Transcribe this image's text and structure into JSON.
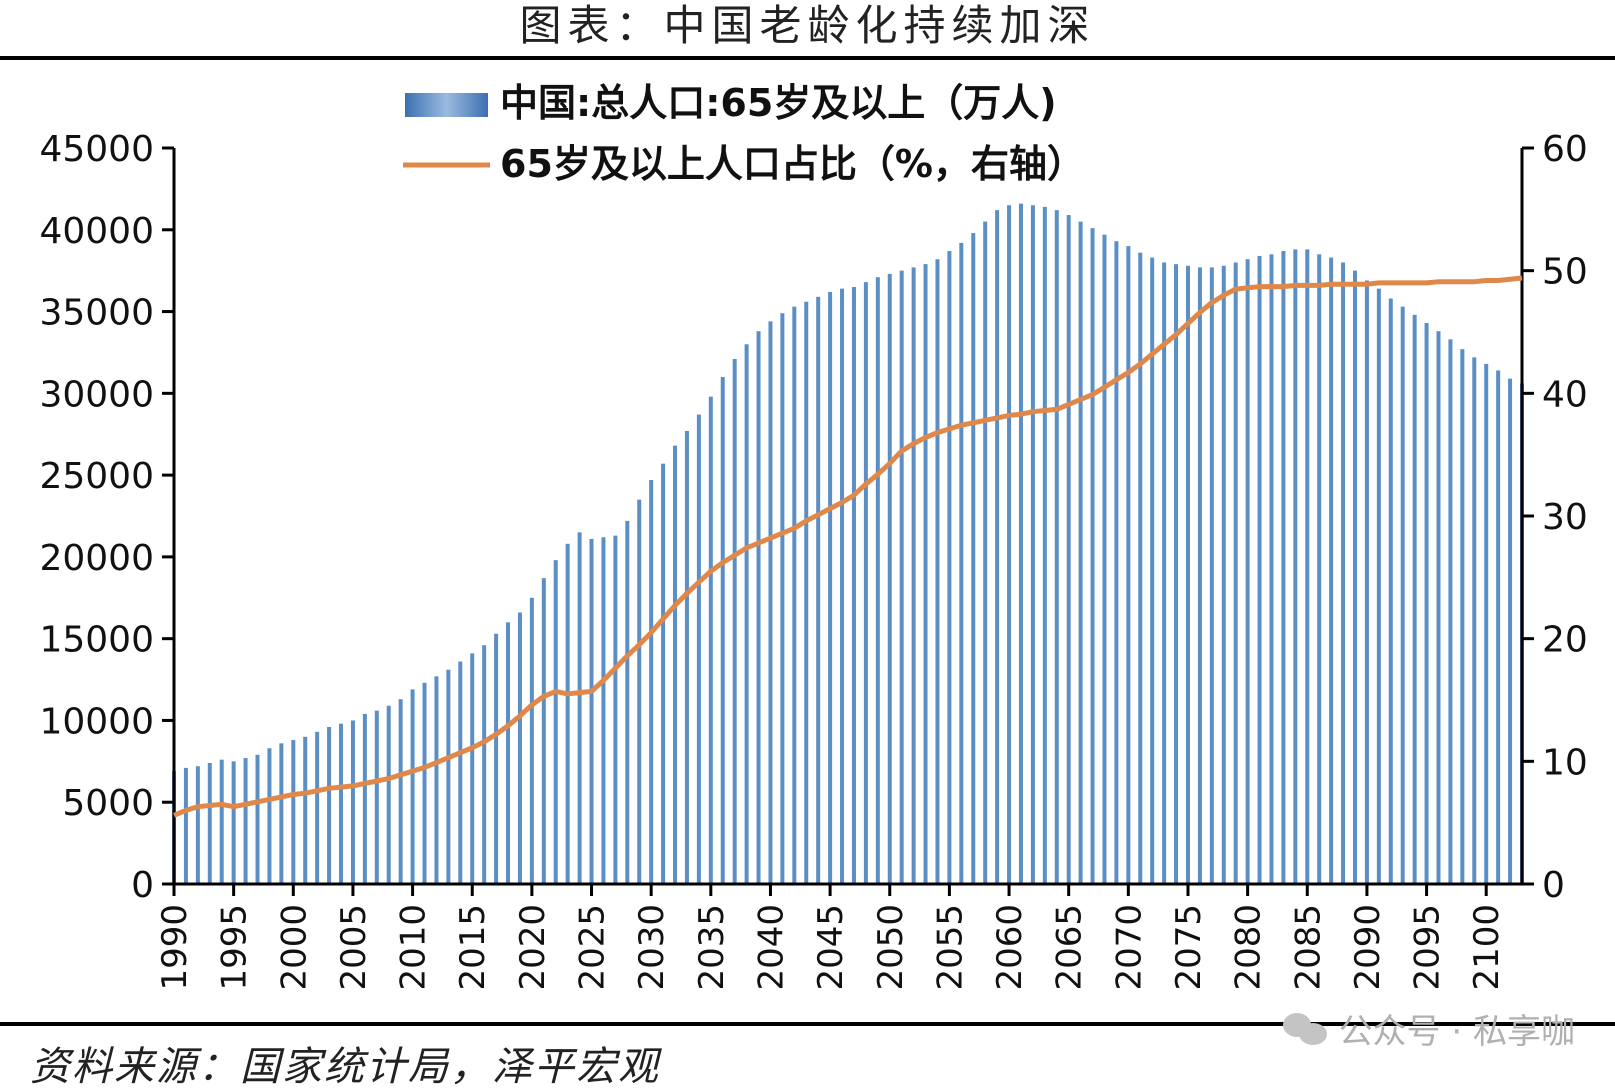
{
  "figure": {
    "title": "图表：中国老龄化持续加深",
    "source": "资料来源：国家统计局，泽平宏观",
    "watermark": "公众号 · 私享咖",
    "watermark_icon": "wechat-icon"
  },
  "chart_data": {
    "type": "bar+line",
    "legend": {
      "placement": "top-center",
      "entries": [
        "中国:总人口:65岁及以上（万人)",
        "65岁及以上人口占比（%，右轴）"
      ]
    },
    "left_axis": {
      "ylim": [
        0,
        45000
      ],
      "ticks": [
        "0",
        "5000",
        "10000",
        "15000",
        "20000",
        "25000",
        "30000",
        "35000",
        "40000",
        "45000"
      ]
    },
    "right_axis": {
      "ylim": [
        0,
        60
      ],
      "ticks": [
        "0",
        "10",
        "20",
        "30",
        "40",
        "50",
        "60"
      ]
    },
    "x_tick_labels": [
      "1990",
      "1995",
      "2000",
      "2005",
      "2010",
      "2015",
      "2020",
      "2025",
      "2030",
      "2035",
      "2040",
      "2045",
      "2050",
      "2055",
      "2060",
      "2065",
      "2070",
      "2075",
      "2080",
      "2085",
      "2090",
      "2095",
      "2100"
    ],
    "colors": {
      "bars": "#5b8ec4",
      "line": "#e0884a"
    },
    "series": [
      {
        "name": "中国:总人口:65岁及以上（万人)",
        "axis": "left",
        "kind": "bar",
        "x_start": 1990,
        "values": [
          6900,
          7100,
          7200,
          7400,
          7600,
          7500,
          7700,
          7900,
          8300,
          8600,
          8800,
          9000,
          9300,
          9600,
          9800,
          10000,
          10400,
          10600,
          10900,
          11300,
          11900,
          12300,
          12700,
          13100,
          13600,
          14100,
          14600,
          15300,
          16000,
          16600,
          17500,
          18700,
          19800,
          20800,
          21500,
          21100,
          21200,
          21300,
          22200,
          23500,
          24700,
          25700,
          26800,
          27700,
          28700,
          29800,
          31000,
          32100,
          33000,
          33800,
          34400,
          34900,
          35300,
          35600,
          35900,
          36200,
          36400,
          36500,
          36800,
          37100,
          37300,
          37500,
          37700,
          37900,
          38200,
          38700,
          39200,
          39800,
          40500,
          41200,
          41500,
          41600,
          41500,
          41400,
          41200,
          40900,
          40500,
          40100,
          39700,
          39300,
          39000,
          38600,
          38300,
          38000,
          37900,
          37800,
          37700,
          37700,
          37800,
          38000,
          38200,
          38400,
          38500,
          38700,
          38800,
          38800,
          38500,
          38300,
          38000,
          37500,
          36900,
          36400,
          35800,
          35300,
          34800,
          34300,
          33800,
          33300,
          32700,
          32200,
          31800,
          31400,
          30900,
          30600
        ]
      },
      {
        "name": "65岁及以上人口占比（%，右轴）",
        "axis": "right",
        "kind": "line",
        "x_start": 1990,
        "values": [
          5.6,
          6.0,
          6.3,
          6.4,
          6.5,
          6.3,
          6.5,
          6.7,
          6.9,
          7.1,
          7.3,
          7.4,
          7.6,
          7.8,
          7.9,
          8.0,
          8.2,
          8.4,
          8.6,
          8.9,
          9.2,
          9.5,
          9.9,
          10.3,
          10.7,
          11.1,
          11.6,
          12.2,
          12.9,
          13.7,
          14.6,
          15.3,
          15.7,
          15.5,
          15.6,
          15.7,
          16.6,
          17.6,
          18.6,
          19.5,
          20.5,
          21.6,
          22.7,
          23.7,
          24.6,
          25.5,
          26.2,
          26.8,
          27.4,
          27.8,
          28.2,
          28.6,
          29.0,
          29.6,
          30.1,
          30.6,
          31.1,
          31.7,
          32.6,
          33.4,
          34.3,
          35.3,
          35.9,
          36.4,
          36.8,
          37.1,
          37.4,
          37.6,
          37.8,
          38.0,
          38.2,
          38.3,
          38.5,
          38.6,
          38.7,
          39.1,
          39.5,
          39.9,
          40.5,
          41.1,
          41.7,
          42.4,
          43.2,
          44.0,
          44.8,
          45.7,
          46.6,
          47.4,
          48.0,
          48.5,
          48.6,
          48.7,
          48.7,
          48.7,
          48.8,
          48.8,
          48.8,
          48.9,
          48.9,
          48.9,
          48.9,
          49.0,
          49.0,
          49.0,
          49.0,
          49.0,
          49.1,
          49.1,
          49.1,
          49.1,
          49.2,
          49.2,
          49.3,
          49.4
        ]
      }
    ]
  }
}
